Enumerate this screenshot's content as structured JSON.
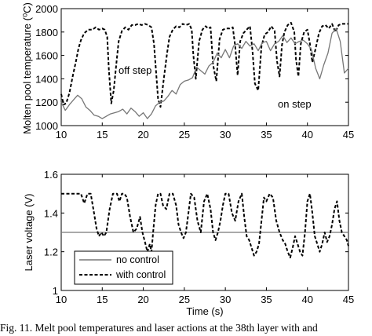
{
  "chart_data": [
    {
      "type": "line",
      "ylabel": "Molten pool temperature (⁰C)",
      "xlim": [
        10,
        45
      ],
      "ylim": [
        1000,
        2000
      ],
      "xticks": [
        10,
        15,
        20,
        25,
        30,
        35,
        40,
        45
      ],
      "yticks": [
        1000,
        1200,
        1400,
        1600,
        1800,
        2000
      ],
      "grid": false,
      "annotations": [
        {
          "text": "off step",
          "x": 16.8,
          "y": 1470
        },
        {
          "text": "on step",
          "x": 37.2,
          "y": 1200
        }
      ],
      "series": [
        {
          "style": "with control",
          "x": [
            10,
            10.3,
            10.6,
            11,
            11.4,
            11.8,
            12.1,
            12.4,
            12.8,
            13.3,
            13.8,
            14.2,
            14.6,
            15,
            15.3,
            15.6,
            15.8,
            16.1,
            16.4,
            16.7,
            17,
            17.4,
            17.8,
            18.2,
            18.6,
            19,
            19.4,
            19.8,
            20.2,
            20.6,
            21,
            21.3,
            21.6,
            21.8,
            22.1,
            22.5,
            22.9,
            23.2,
            23.6,
            24,
            24.4,
            24.8,
            25.2,
            25.6,
            25.9,
            26.1,
            26.4,
            26.8,
            27.2,
            27.6,
            27.9,
            28.2,
            28.5,
            28.9,
            29.3,
            29.7,
            30.1,
            30.5,
            30.9,
            31.2,
            31.5,
            31.8,
            32.2,
            32.6,
            33,
            33.3,
            33.6,
            34,
            34.4,
            34.8,
            35.2,
            35.6,
            36,
            36.3,
            36.6,
            36.9,
            37.2,
            37.6,
            38,
            38.4,
            38.6,
            38.9,
            39.2,
            39.6,
            40,
            40.3,
            40.6,
            41,
            41.4,
            41.8,
            42.2,
            42.6,
            43,
            43.4,
            43.8,
            44.2,
            44.6,
            45
          ],
          "y": [
            1270,
            1180,
            1190,
            1280,
            1420,
            1550,
            1660,
            1730,
            1790,
            1820,
            1820,
            1840,
            1820,
            1830,
            1820,
            1760,
            1480,
            1190,
            1300,
            1520,
            1720,
            1810,
            1840,
            1820,
            1860,
            1860,
            1870,
            1860,
            1870,
            1860,
            1840,
            1700,
            1420,
            1230,
            1160,
            1400,
            1620,
            1760,
            1820,
            1850,
            1840,
            1870,
            1860,
            1870,
            1820,
            1600,
            1400,
            1720,
            1820,
            1850,
            1830,
            1840,
            1520,
            1380,
            1740,
            1820,
            1830,
            1830,
            1840,
            1680,
            1430,
            1720,
            1790,
            1820,
            1850,
            1640,
            1360,
            1300,
            1680,
            1780,
            1800,
            1850,
            1810,
            1550,
            1420,
            1690,
            1800,
            1860,
            1880,
            1800,
            1570,
            1420,
            1700,
            1800,
            1820,
            1700,
            1540,
            1660,
            1790,
            1850,
            1860,
            1830,
            1870,
            1800,
            1860,
            1870,
            1870,
            1870
          ]
        },
        {
          "style": "no control",
          "x": [
            10,
            10.5,
            11,
            11.5,
            12,
            12.5,
            13,
            13.5,
            14,
            14.5,
            15,
            15.5,
            16,
            16.5,
            17,
            17.5,
            18,
            18.5,
            19,
            19.5,
            20,
            20.5,
            21,
            21.5,
            22,
            22.5,
            23,
            23.5,
            24,
            24.5,
            25,
            25.5,
            26,
            26.5,
            27,
            27.5,
            28,
            28.5,
            29,
            29.5,
            30,
            30.5,
            31,
            31.5,
            32,
            32.5,
            33,
            33.5,
            34,
            34.5,
            35,
            35.5,
            36,
            36.5,
            37,
            37.5,
            38,
            38.5,
            39,
            39.5,
            40,
            40.5,
            41,
            41.5,
            42,
            42.5,
            43,
            43.5,
            44,
            44.5,
            45
          ],
          "y": [
            1200,
            1130,
            1180,
            1220,
            1260,
            1230,
            1160,
            1130,
            1090,
            1080,
            1060,
            1080,
            1100,
            1110,
            1120,
            1140,
            1100,
            1150,
            1120,
            1080,
            1110,
            1060,
            1100,
            1170,
            1200,
            1210,
            1250,
            1300,
            1270,
            1350,
            1380,
            1390,
            1410,
            1500,
            1470,
            1440,
            1510,
            1540,
            1620,
            1580,
            1650,
            1580,
            1680,
            1700,
            1660,
            1720,
            1680,
            1700,
            1640,
            1710,
            1720,
            1640,
            1700,
            1720,
            1770,
            1710,
            1750,
            1700,
            1720,
            1730,
            1700,
            1650,
            1490,
            1400,
            1520,
            1620,
            1790,
            1830,
            1720,
            1450,
            1490
          ]
        }
      ]
    },
    {
      "type": "line",
      "xlabel": "Time (s)",
      "ylabel": "Laser voltage (V)",
      "xlim": [
        10,
        45
      ],
      "ylim": [
        1,
        1.6
      ],
      "xticks": [
        10,
        15,
        20,
        25,
        30,
        35,
        40,
        45
      ],
      "yticks": [
        1,
        1.2,
        1.4,
        1.6
      ],
      "grid": false,
      "legend_position": "bottom-left",
      "legend": [
        "no control",
        "with control"
      ],
      "series": [
        {
          "style": "no control",
          "x": [
            10,
            45
          ],
          "y": [
            1.3,
            1.3
          ]
        },
        {
          "style": "with control",
          "x": [
            10,
            10.5,
            11,
            11.5,
            12,
            12.4,
            12.8,
            13.2,
            13.6,
            14,
            14.3,
            14.6,
            14.9,
            15.2,
            15.5,
            15.9,
            16.3,
            16.8,
            17.1,
            17.4,
            17.7,
            18,
            18.4,
            18.8,
            19.2,
            19.6,
            19.9,
            20.2,
            20.5,
            20.8,
            21,
            21.2,
            21.5,
            21.8,
            22.1,
            22.4,
            22.8,
            23.2,
            23.6,
            24,
            24.3,
            24.6,
            24.9,
            25.2,
            25.5,
            25.8,
            26.2,
            26.6,
            27,
            27.4,
            27.8,
            28.2,
            28.5,
            28.8,
            29.1,
            29.4,
            29.7,
            30,
            30.4,
            30.8,
            31.2,
            31.6,
            32,
            32.3,
            32.6,
            32.9,
            33.2,
            33.5,
            33.8,
            34.1,
            34.4,
            34.7,
            35,
            35.4,
            35.8,
            36.2,
            36.6,
            37,
            37.3,
            37.6,
            37.9,
            38.2,
            38.5,
            38.8,
            39.1,
            39.4,
            39.7,
            40,
            40.3,
            40.6,
            40.9,
            41.2,
            41.5,
            41.8,
            42.1,
            42.4,
            42.7,
            43,
            43.3,
            43.6,
            43.9,
            44.2,
            44.5,
            44.8,
            45
          ],
          "y": [
            1.5,
            1.5,
            1.5,
            1.5,
            1.5,
            1.5,
            1.45,
            1.5,
            1.5,
            1.4,
            1.32,
            1.28,
            1.3,
            1.28,
            1.3,
            1.42,
            1.5,
            1.5,
            1.46,
            1.5,
            1.5,
            1.48,
            1.38,
            1.3,
            1.32,
            1.38,
            1.3,
            1.25,
            1.2,
            1.24,
            1.2,
            1.3,
            1.44,
            1.5,
            1.5,
            1.44,
            1.42,
            1.5,
            1.5,
            1.44,
            1.34,
            1.3,
            1.27,
            1.3,
            1.4,
            1.5,
            1.48,
            1.36,
            1.3,
            1.46,
            1.5,
            1.42,
            1.3,
            1.26,
            1.3,
            1.36,
            1.44,
            1.5,
            1.5,
            1.4,
            1.36,
            1.46,
            1.5,
            1.38,
            1.28,
            1.26,
            1.22,
            1.18,
            1.2,
            1.24,
            1.36,
            1.48,
            1.46,
            1.5,
            1.48,
            1.36,
            1.3,
            1.26,
            1.24,
            1.2,
            1.17,
            1.22,
            1.28,
            1.24,
            1.2,
            1.18,
            1.3,
            1.46,
            1.5,
            1.4,
            1.28,
            1.24,
            1.2,
            1.24,
            1.3,
            1.25,
            1.28,
            1.34,
            1.42,
            1.46,
            1.36,
            1.3,
            1.28,
            1.26,
            1.23
          ]
        }
      ]
    }
  ],
  "caption": "Fig. 11.   Melt pool temperatures and laser actions at the 38th layer with and"
}
